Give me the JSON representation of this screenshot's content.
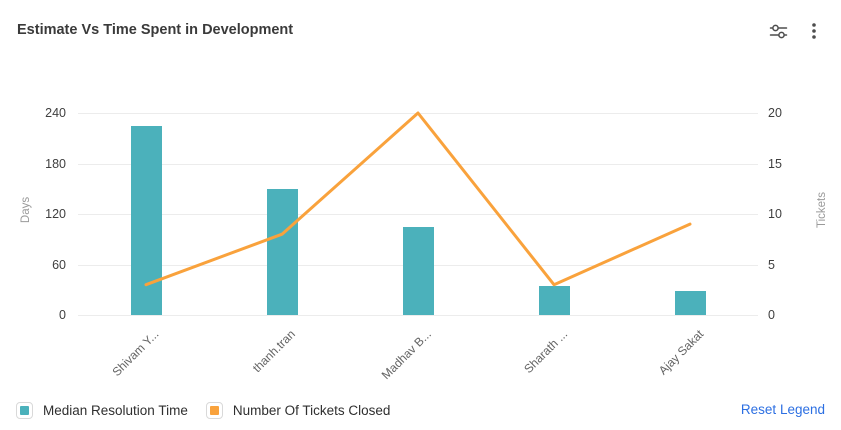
{
  "header": {
    "title": "Estimate Vs Time Spent in Development"
  },
  "chart_data": {
    "type": "bar",
    "subtype": "combo-bar-line-dual-axis",
    "title": "Estimate Vs Time Spent in Development",
    "categories": [
      "Shivam Y...",
      "thanh.tran",
      "Madhav B...",
      "Sharath ...",
      "Ajay Sakat"
    ],
    "series": [
      {
        "name": "Median Resolution Time",
        "type": "bar",
        "axis": "left",
        "color": "#4bb1bb",
        "values": [
          225,
          150,
          105,
          34,
          28
        ]
      },
      {
        "name": "Number Of Tickets Closed",
        "type": "line",
        "axis": "right",
        "color": "#f9a23c",
        "values": [
          3,
          8,
          20,
          3,
          9
        ]
      }
    ],
    "left_axis": {
      "label": "Days",
      "ticks": [
        0,
        60,
        120,
        180,
        240
      ],
      "range": [
        0,
        240
      ]
    },
    "right_axis": {
      "label": "Tickets",
      "ticks": [
        0,
        5,
        10,
        15,
        20
      ],
      "range": [
        0,
        20
      ]
    },
    "grid": true,
    "legend_position": "bottom",
    "x_label_rotation": -45
  },
  "legend": {
    "items": [
      {
        "label": "Median Resolution Time",
        "color": "#4bb1bb"
      },
      {
        "label": "Number Of Tickets Closed",
        "color": "#f9a23c"
      }
    ],
    "reset_label": "Reset Legend"
  },
  "colors": {
    "bar": "#4bb1bb",
    "line": "#f9a23c",
    "link": "#2c6fe2",
    "grid": "#ececec",
    "title_text": "#3a3a3a",
    "tick_text": "#3f3f3f",
    "axis_name_text": "#9a9a9a"
  }
}
